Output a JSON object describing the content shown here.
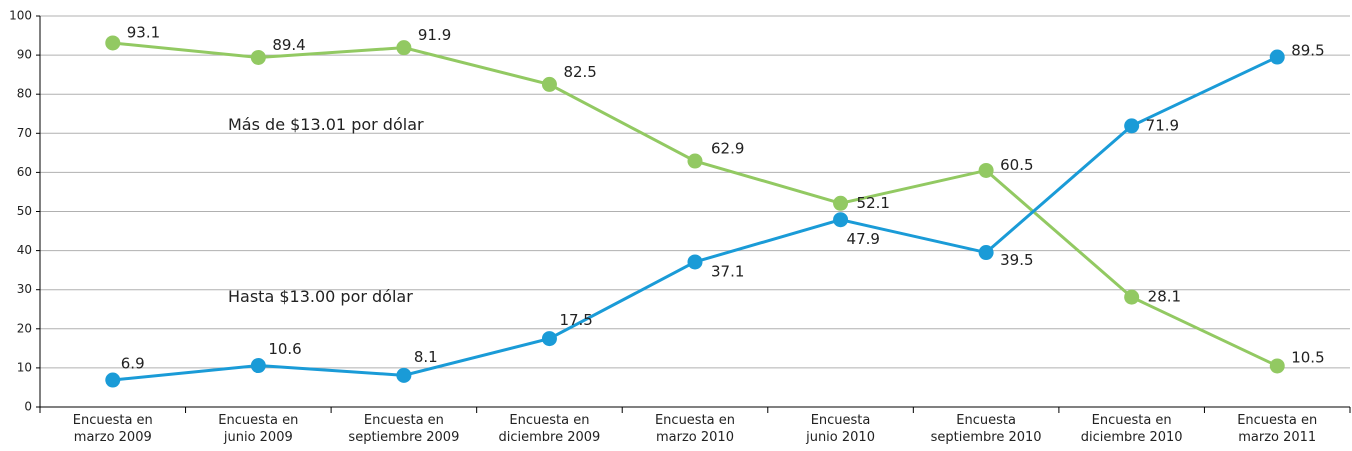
{
  "chart_data": {
    "type": "line",
    "categories": [
      "Encuesta en\nmarzo 2009",
      "Encuesta en\njunio 2009",
      "Encuesta en\nseptiembre 2009",
      "Encuesta en\ndiciembre 2009",
      "Encuesta en\nmarzo 2010",
      "Encuesta\njunio 2010",
      "Encuesta\nseptiembre 2010",
      "Encuesta en\ndiciembre 2010",
      "Encuesta en\nmarzo 2011"
    ],
    "series": [
      {
        "name": "Más de $13.01 por dólar",
        "color": "#92c962",
        "values": [
          93.1,
          89.4,
          91.9,
          82.5,
          62.9,
          52.1,
          60.5,
          28.1,
          10.5
        ]
      },
      {
        "name": "Hasta $13.00 por dólar",
        "color": "#1a9bd7",
        "values": [
          6.9,
          10.6,
          8.1,
          17.5,
          37.1,
          47.9,
          39.5,
          71.9,
          89.5
        ]
      }
    ],
    "ylim": [
      0,
      100
    ],
    "yticks": [
      0,
      10,
      20,
      30,
      40,
      50,
      60,
      70,
      80,
      90,
      100
    ],
    "grid": true
  }
}
